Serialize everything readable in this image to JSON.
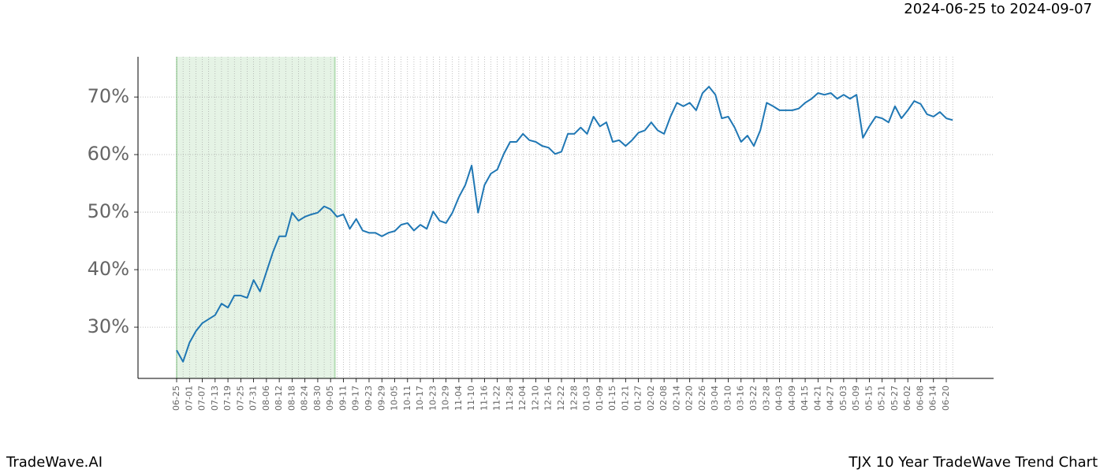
{
  "chart_data": {
    "type": "line",
    "title": "2024-06-25 to 2024-09-07",
    "footer_left": "TradeWave.AI",
    "footer_right": "TJX 10 Year TradeWave Trend Chart",
    "categories": [
      "06-25",
      null,
      "07-01",
      null,
      "07-07",
      null,
      "07-13",
      null,
      "07-19",
      null,
      "07-25",
      null,
      "07-31",
      null,
      "08-06",
      null,
      "08-12",
      null,
      "08-18",
      null,
      "08-24",
      null,
      "08-30",
      null,
      "09-05",
      null,
      "09-11",
      null,
      "09-17",
      null,
      "09-23",
      null,
      "09-29",
      null,
      "10-05",
      null,
      "10-11",
      null,
      "10-17",
      null,
      "10-23",
      null,
      "10-29",
      null,
      "11-04",
      null,
      "11-10",
      null,
      "11-16",
      null,
      "11-22",
      null,
      "11-28",
      null,
      "12-04",
      null,
      "12-10",
      null,
      "12-16",
      null,
      "12-22",
      null,
      "12-28",
      null,
      "01-03",
      null,
      "01-09",
      null,
      "01-15",
      null,
      "01-21",
      null,
      "01-27",
      null,
      "02-02",
      null,
      "02-08",
      null,
      "02-14",
      null,
      "02-20",
      null,
      "02-26",
      null,
      "03-04",
      null,
      "03-10",
      null,
      "03-16",
      null,
      "03-22",
      null,
      "03-28",
      null,
      "04-03",
      null,
      "04-09",
      null,
      "04-15",
      null,
      "04-21",
      null,
      "04-27",
      null,
      "05-03",
      null,
      "05-09",
      null,
      "05-15",
      null,
      "05-21",
      null,
      "05-27",
      null,
      "06-02",
      null,
      "06-08",
      null,
      "06-14",
      null,
      "06-20",
      null
    ],
    "series": [
      {
        "color": "#1f77b4",
        "values": [
          26,
          24,
          27.3,
          29.3,
          30.7,
          31.4,
          32.1,
          34.1,
          33.4,
          35.5,
          35.5,
          35.1,
          38.2,
          36.2,
          39.6,
          43,
          45.8,
          45.8,
          49.9,
          48.5,
          49.2,
          49.6,
          49.9,
          51,
          50.5,
          49.2,
          49.6,
          47.1,
          48.8,
          46.8,
          46.4,
          46.4,
          45.8,
          46.4,
          46.7,
          47.8,
          48.1,
          46.8,
          47.8,
          47.1,
          50.1,
          48.5,
          48.1,
          49.9,
          52.6,
          54.7,
          58.1,
          49.9,
          54.7,
          56.7,
          57.4,
          60.1,
          62.2,
          62.2,
          63.6,
          62.5,
          62.2,
          61.5,
          61.2,
          60.1,
          60.5,
          63.6,
          63.6,
          64.7,
          63.6,
          66.6,
          64.9,
          65.6,
          62.2,
          62.5,
          61.5,
          62.5,
          63.8,
          64.2,
          65.6,
          64.2,
          63.6,
          66.6,
          69,
          68.4,
          69,
          67.7,
          70.7,
          71.8,
          70.4,
          66.3,
          66.6,
          64.7,
          62.2,
          63.3,
          61.5,
          64.2,
          69,
          68.4,
          67.7,
          67.7,
          67.7,
          68,
          69,
          69.7,
          70.7,
          70.4,
          70.7,
          69.7,
          70.4,
          69.7,
          70.4,
          62.9,
          64.9,
          66.6,
          66.3,
          65.6,
          68.4,
          66.3,
          67.7,
          69.3,
          68.8,
          67,
          66.6,
          67.4,
          66.3,
          66
        ]
      }
    ],
    "highlight": {
      "range": [
        0,
        24.67
      ],
      "color": "#2ca02c"
    },
    "ylim": [
      21.1,
      77
    ],
    "yticks": [
      {
        "value": 30,
        "label": "30%"
      },
      {
        "value": 40,
        "label": "40%"
      },
      {
        "value": 50,
        "label": "50%"
      },
      {
        "value": 60,
        "label": "60%"
      },
      {
        "value": 70,
        "label": "70%"
      }
    ],
    "grid": true
  }
}
